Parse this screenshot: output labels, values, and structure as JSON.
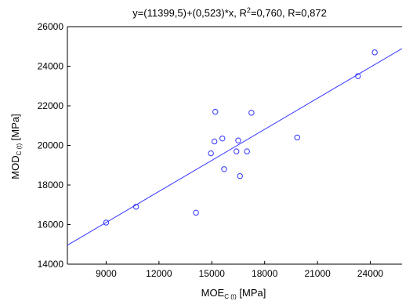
{
  "chart_data": {
    "type": "scatter",
    "title_parts": {
      "eq": "y=(11399,5)+(0,523)*x, R",
      "sup": "2",
      "rest": "=0,760, R=0,872"
    },
    "xlabel_parts": {
      "main": "MOE",
      "sub": "C (t)",
      "unit": " [MPa]"
    },
    "ylabel_parts": {
      "main": "MOD",
      "sub": "C (t)",
      "unit": " [MPa]"
    },
    "xlim": [
      6800,
      25800
    ],
    "ylim": [
      14000,
      26000
    ],
    "x_ticks": [
      9000,
      12000,
      15000,
      18000,
      21000,
      24000
    ],
    "y_ticks": [
      14000,
      16000,
      18000,
      20000,
      22000,
      24000,
      26000
    ],
    "grid": false,
    "legend": "none",
    "series": [
      {
        "x": [
          9000,
          10700,
          14100,
          14950,
          15150,
          15200,
          15600,
          15700,
          16400,
          16500,
          16600,
          17000,
          17250,
          19850,
          23300,
          24250
        ],
        "y": [
          16100,
          16900,
          16600,
          19600,
          20200,
          21700,
          20350,
          18800,
          19700,
          20250,
          18450,
          19700,
          21650,
          20400,
          23500,
          24700
        ]
      }
    ],
    "fit": {
      "intercept": 11399.5,
      "slope": 0.523
    },
    "colors": {
      "marker": "#3333ff",
      "fit_line": "#3333ff",
      "axis": "#000000"
    }
  }
}
